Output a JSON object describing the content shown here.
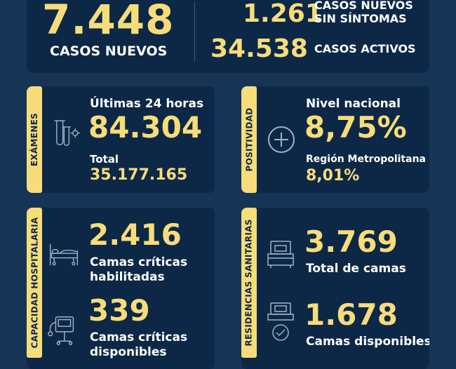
{
  "top": {
    "new_cases_value": "7.448",
    "new_cases_label": "CASOS NUEVOS",
    "asymptomatic_value": "1.261",
    "asymptomatic_label_line1": "CASOS NUEVOS",
    "asymptomatic_label_line2": "SIN SÍNTOMAS",
    "active_value": "34.538",
    "active_label": "CASOS ACTIVOS"
  },
  "exams": {
    "tab_label": "EXÁMENES",
    "icon": "test-tubes-icon",
    "last24_label": "Últimas 24 horas",
    "last24_value": "84.304",
    "total_label": "Total",
    "total_value": "35.177.165"
  },
  "positivity": {
    "tab_label": "POSITIVIDAD",
    "icon": "plus-circle-icon",
    "national_label": "Nivel nacional",
    "national_value": "8,75%",
    "metro_label": "Región Metropolitana",
    "metro_value": "8,01%"
  },
  "hospital": {
    "tab_label": "CAPACIDAD HOSPITALARIA",
    "bed_icon": "hospital-bed-icon",
    "ventilator_icon": "ventilator-icon",
    "enabled_value": "2.416",
    "enabled_label_line1": "Camas críticas",
    "enabled_label_line2": "habilitadas",
    "available_value": "339",
    "available_label_line1": "Camas críticas",
    "available_label_line2": "disponibles"
  },
  "residences": {
    "tab_label": "RESIDENCIAS SANITARIAS",
    "bed_icon": "bed-icon",
    "check_icon": "bed-check-icon",
    "total_value": "3.769",
    "total_label": "Total de camas",
    "available_value": "1.678",
    "available_label": "Camas disponibles"
  },
  "colors": {
    "background": "#163456",
    "panel": "#0d2846",
    "accent": "#f7dc7a"
  }
}
